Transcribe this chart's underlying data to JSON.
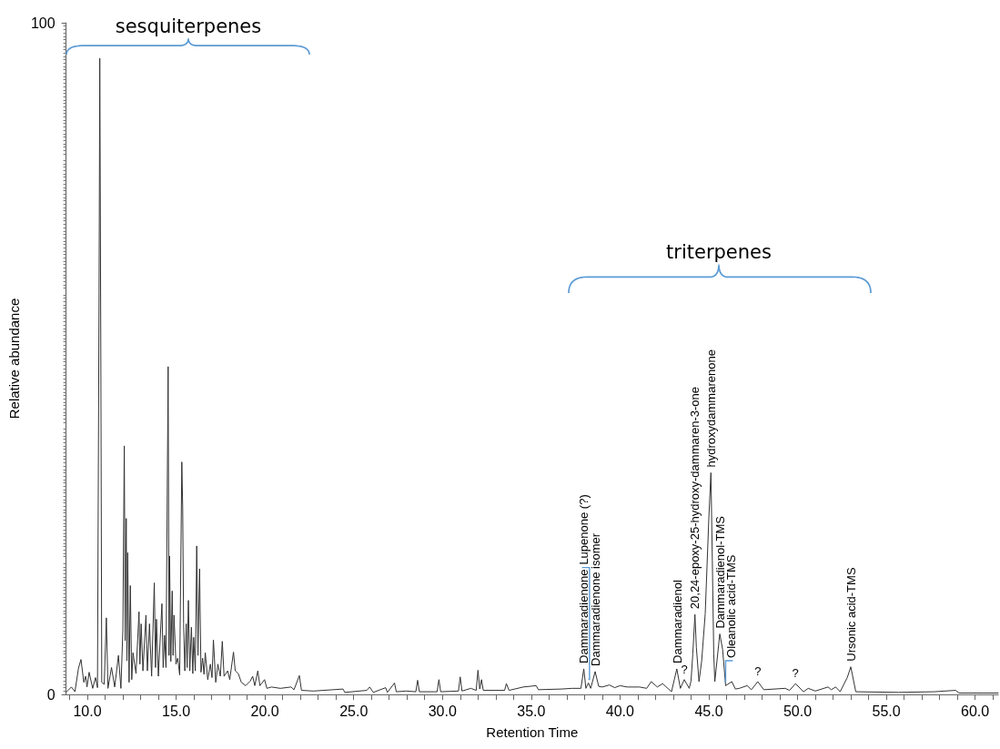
{
  "chart_data": {
    "type": "line",
    "xlabel": "Retention Time",
    "ylabel": "Relative abundance",
    "marker": "none",
    "line_style": "solid",
    "xlim": [
      8.8,
      61.3
    ],
    "ylim": [
      0,
      100
    ],
    "yticks": [
      0,
      100
    ],
    "xticks": [
      {
        "value": 9,
        "label": null
      },
      {
        "value": 10,
        "label": "10.0"
      },
      {
        "value": 11,
        "label": null
      },
      {
        "value": 12,
        "label": null
      },
      {
        "value": 13,
        "label": null
      },
      {
        "value": 14,
        "label": null
      },
      {
        "value": 15,
        "label": "15.0"
      },
      {
        "value": 16,
        "label": null
      },
      {
        "value": 17,
        "label": null
      },
      {
        "value": 18,
        "label": null
      },
      {
        "value": 19,
        "label": null
      },
      {
        "value": 20,
        "label": "20.0"
      },
      {
        "value": 21,
        "label": null
      },
      {
        "value": 22,
        "label": null
      },
      {
        "value": 23,
        "label": null
      },
      {
        "value": 24,
        "label": null
      },
      {
        "value": 25,
        "label": "25.0"
      },
      {
        "value": 26,
        "label": null
      },
      {
        "value": 27,
        "label": null
      },
      {
        "value": 28,
        "label": null
      },
      {
        "value": 29,
        "label": null
      },
      {
        "value": 30,
        "label": "30.0"
      },
      {
        "value": 31,
        "label": null
      },
      {
        "value": 32,
        "label": null
      },
      {
        "value": 33,
        "label": null
      },
      {
        "value": 34,
        "label": null
      },
      {
        "value": 35,
        "label": "35.0"
      },
      {
        "value": 36,
        "label": null
      },
      {
        "value": 37,
        "label": null
      },
      {
        "value": 38,
        "label": null
      },
      {
        "value": 39,
        "label": null
      },
      {
        "value": 40,
        "label": "40.0"
      },
      {
        "value": 41,
        "label": null
      },
      {
        "value": 42,
        "label": null
      },
      {
        "value": 43,
        "label": null
      },
      {
        "value": 44,
        "label": null
      },
      {
        "value": 45,
        "label": "45.0"
      },
      {
        "value": 46,
        "label": null
      },
      {
        "value": 47,
        "label": null
      },
      {
        "value": 48,
        "label": null
      },
      {
        "value": 49,
        "label": null
      },
      {
        "value": 50,
        "label": "50.0"
      },
      {
        "value": 51,
        "label": null
      },
      {
        "value": 52,
        "label": null
      },
      {
        "value": 53,
        "label": null
      },
      {
        "value": 54,
        "label": null
      },
      {
        "value": 55,
        "label": "55.0"
      },
      {
        "value": 56,
        "label": null
      },
      {
        "value": 57,
        "label": null
      },
      {
        "value": 58,
        "label": null
      },
      {
        "value": 59,
        "label": null
      },
      {
        "value": 60,
        "label": "60.0"
      },
      {
        "value": 61,
        "label": null
      }
    ],
    "series": [
      {
        "color": "#333333",
        "x": [
          8.8,
          9.1,
          9.3,
          9.5,
          9.64,
          9.8,
          9.9,
          9.98,
          10.1,
          10.3,
          10.46,
          10.57,
          10.66,
          10.7,
          10.76,
          10.81,
          10.95,
          11.07,
          11.16,
          11.36,
          11.54,
          11.75,
          11.89,
          12.0,
          12.08,
          12.13,
          12.19,
          12.23,
          12.27,
          12.35,
          12.42,
          12.5,
          12.57,
          12.74,
          12.91,
          12.96,
          13.03,
          13.13,
          13.3,
          13.38,
          13.5,
          13.62,
          13.77,
          13.84,
          13.89,
          14.0,
          14.2,
          14.27,
          14.35,
          14.43,
          14.55,
          14.6,
          14.63,
          14.7,
          14.78,
          14.83,
          14.88,
          14.99,
          15.09,
          15.2,
          15.32,
          15.37,
          15.42,
          15.49,
          15.57,
          15.62,
          15.69,
          15.77,
          15.86,
          15.94,
          15.99,
          16.08,
          16.16,
          16.23,
          16.32,
          16.4,
          16.49,
          16.57,
          16.64,
          16.78,
          16.93,
          17.02,
          17.1,
          17.23,
          17.35,
          17.49,
          17.6,
          17.7,
          17.9,
          18.02,
          18.23,
          18.33,
          18.5,
          18.67,
          18.92,
          19.18,
          19.31,
          19.43,
          19.6,
          19.72,
          19.98,
          20.11,
          20.37,
          20.87,
          21.47,
          21.64,
          21.94,
          22.06,
          22.74,
          24.4,
          24.5,
          25.74,
          25.9,
          26.1,
          26.8,
          26.9,
          27.3,
          27.4,
          27.97,
          28.5,
          28.6,
          28.7,
          29.7,
          29.8,
          29.9,
          30.9,
          31.0,
          31.1,
          31.6,
          31.9,
          32.0,
          32.1,
          32.2,
          32.3,
          33.5,
          33.6,
          33.75,
          34.55,
          35.28,
          35.4,
          36.7,
          37.3,
          37.8,
          37.96,
          38.08,
          38.22,
          38.35,
          38.6,
          38.8,
          39.0,
          39.4,
          39.7,
          40.0,
          40.4,
          41.1,
          41.5,
          41.76,
          42.1,
          42.4,
          42.9,
          43.2,
          43.4,
          43.62,
          43.9,
          44.0,
          44.1,
          44.22,
          44.3,
          44.45,
          44.6,
          44.8,
          45.0,
          45.12,
          45.2,
          45.28,
          45.34,
          45.62,
          45.78,
          45.95,
          46.3,
          46.5,
          46.72,
          47.16,
          47.4,
          47.76,
          48.1,
          49.3,
          49.55,
          49.88,
          50.34,
          50.6,
          51.0,
          51.72,
          51.9,
          52.15,
          52.4,
          52.8,
          53.0,
          53.28,
          55.7,
          57.7,
          58.9,
          59.1,
          61.3
        ],
        "values": [
          0.3,
          1.1,
          0.4,
          3.9,
          5.2,
          1.8,
          2.7,
          1.1,
          3.3,
          0.9,
          2.5,
          1.0,
          60,
          94.7,
          50,
          1.8,
          1.5,
          11.4,
          0.9,
          4.0,
          1.1,
          5.8,
          0.9,
          9.6,
          37.0,
          8,
          26.2,
          5,
          21.1,
          1.8,
          16.2,
          2.2,
          6.2,
          3.1,
          12.3,
          4.5,
          10.5,
          3.5,
          11.8,
          3.5,
          10.5,
          2.7,
          16.6,
          4.0,
          11.2,
          2.7,
          13.5,
          4.0,
          8.8,
          4.0,
          48.8,
          5.8,
          20.6,
          4.9,
          15.4,
          5.8,
          11.8,
          4.5,
          5.4,
          2.9,
          34.6,
          27.8,
          10.5,
          3.5,
          10.5,
          4.0,
          14.0,
          3.5,
          10.0,
          3.1,
          8.5,
          3.5,
          22.1,
          5.8,
          18.7,
          3.3,
          5.4,
          3.0,
          6.2,
          2.2,
          4.5,
          2.5,
          8.1,
          1.8,
          4.5,
          2.7,
          7.9,
          2.7,
          3.5,
          2.2,
          6.3,
          3.5,
          3.1,
          1.8,
          1.3,
          2.0,
          2.7,
          1.3,
          3.5,
          1.3,
          2.2,
          0.9,
          1.1,
          0.9,
          1.1,
          0.7,
          2.8,
          0.6,
          0.5,
          0.8,
          0.3,
          0.6,
          1.1,
          0.3,
          1.0,
          0.3,
          1.7,
          0.4,
          0.5,
          0.4,
          2.1,
          0.4,
          0.4,
          2.2,
          0.4,
          0.5,
          2.6,
          0.5,
          0.9,
          0.6,
          3.6,
          0.8,
          2.2,
          0.6,
          0.6,
          1.6,
          0.6,
          1.1,
          1.3,
          0.7,
          0.8,
          0.9,
          0.9,
          3.8,
          0.9,
          1.7,
          0.9,
          3.4,
          1.2,
          1.1,
          1.4,
          1.0,
          1.3,
          1.1,
          1.1,
          0.9,
          1.9,
          1.1,
          1.6,
          0.4,
          3.8,
          0.9,
          2.2,
          0.9,
          2.0,
          6.0,
          11.9,
          7.0,
          1.9,
          5.0,
          12.0,
          26.0,
          33.0,
          20.0,
          6.0,
          1.9,
          9.0,
          6.7,
          1.3,
          1.9,
          0.8,
          0.9,
          1.3,
          0.7,
          1.9,
          0.7,
          0.9,
          0.6,
          1.6,
          0.4,
          0.9,
          0.5,
          1.1,
          0.7,
          1.1,
          0.4,
          2.5,
          4.1,
          0.4,
          0.3,
          0.4,
          0.6,
          0.2,
          0.2
        ]
      }
    ],
    "annotations": [
      "sesquiterpenes",
      "triterpenes",
      {
        "text": "Dammaradienone",
        "x": 37.96,
        "y": 3.8
      },
      {
        "text": "Lupenone (?)",
        "x": 38.22,
        "y": 1.7
      },
      {
        "text": "Dammaradienone isomer",
        "x": 38.6,
        "y": 3.4
      },
      {
        "text": "Dammaradienol",
        "x": 43.2,
        "y": 3.8
      },
      {
        "text": "?",
        "x": 43.62,
        "y": 2.2
      },
      {
        "text": "20,24-epoxy-25-hydroxy-dammaren-3-one",
        "x": 44.22,
        "y": 11.9
      },
      {
        "text": "hydroxydammarenone",
        "x": 45.12,
        "y": 33.0
      },
      {
        "text": "Dammaradienol-TMS",
        "x": 45.62,
        "y": 9.0
      },
      {
        "text": "Oleanolic acid-TMS",
        "x": 45.95,
        "y": 1.3
      },
      {
        "text": "?",
        "x": 47.76,
        "y": 1.9
      },
      {
        "text": "?",
        "x": 49.88,
        "y": 1.6
      },
      {
        "text": "Ursonic acid-TMS",
        "x": 53.0,
        "y": 4.1
      }
    ]
  }
}
